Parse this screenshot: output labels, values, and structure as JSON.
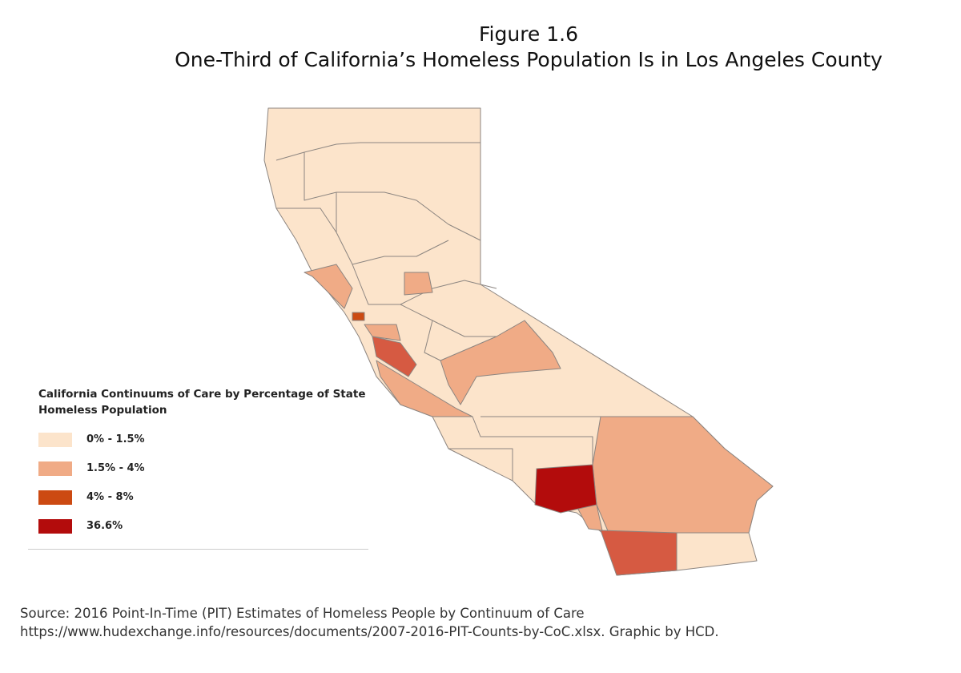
{
  "figure": {
    "label": "Figure 1.6",
    "title": "One-Third of California’s Homeless Population Is in Los Angeles County"
  },
  "legend": {
    "title": "California Continuums of Care by Percentage of State Homeless Population",
    "items": [
      {
        "label": "0% - 1.5%",
        "color": "#fce4cb"
      },
      {
        "label": "1.5% - 4%",
        "color": "#f0ab86"
      },
      {
        "label": "4% - 8%",
        "color": "#cc4a12"
      },
      {
        "label": "36.6%",
        "color": "#b30c0c"
      }
    ]
  },
  "source": {
    "lines": [
      "Source: 2016 Point-In-Time (PIT) Estimates of Homeless People by Continuum of Care",
      "https://www.hudexchange.info/resources/documents/2007-2016-PIT-Counts-by-CoC.xlsx. Graphic by HCD."
    ]
  }
}
